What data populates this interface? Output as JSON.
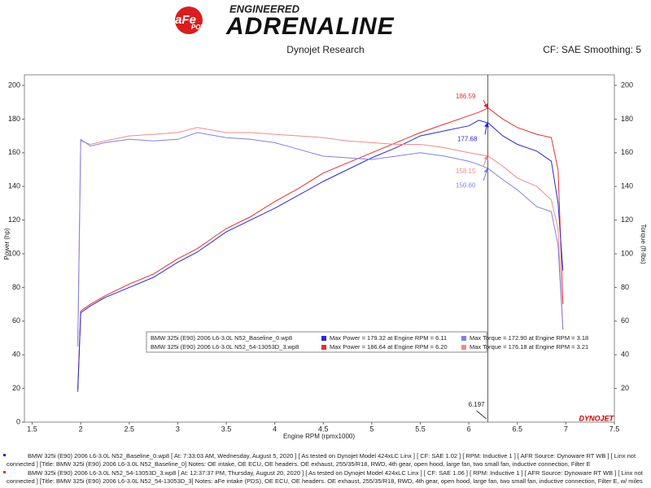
{
  "header": {
    "logo_brand": "aFe",
    "logo_sub": "POWER",
    "tagline": "ENGINEERED",
    "wordmark": "ADRENALINE"
  },
  "chart_data": {
    "type": "line",
    "title": "Dynojet Research",
    "subtitle": "CF: SAE Smoothing: 5",
    "x_label": "Engine RPM (rpmx1000)",
    "y_label": "Power (hp)",
    "y2_label": "Torque (ft-lbs)",
    "xlim": [
      1.42,
      7.5
    ],
    "xticks": [
      1.5,
      2.0,
      2.5,
      3.0,
      3.5,
      4.0,
      4.5,
      5.0,
      5.5,
      6.0,
      6.5,
      7.0,
      7.5
    ],
    "ylim": [
      0,
      206.3
    ],
    "yticks": [
      0,
      20,
      40,
      60,
      80,
      100,
      120,
      140,
      160,
      180,
      200
    ],
    "y2lim": [
      0,
      206.3
    ],
    "y2ticks": [
      20,
      40,
      60,
      80,
      100,
      120,
      140,
      160,
      180,
      200
    ],
    "grid": false,
    "x": [
      1.97,
      2.0,
      2.1,
      2.25,
      2.5,
      2.75,
      3.0,
      3.2,
      3.5,
      3.75,
      4.0,
      4.25,
      4.5,
      4.75,
      5.0,
      5.25,
      5.5,
      5.75,
      6.0,
      6.1,
      6.2,
      6.35,
      6.5,
      6.7,
      6.85,
      6.92,
      6.97
    ],
    "series": [
      {
        "color": "#e03030",
        "values": [
          20,
          66,
          70,
          75,
          82,
          88,
          97,
          103,
          115,
          122,
          131,
          139,
          148,
          154,
          160,
          166,
          172,
          177,
          182,
          184,
          186.6,
          180,
          175,
          171,
          169,
          150,
          70
        ]
      },
      {
        "color": "#2a2ad6",
        "values": [
          18,
          65,
          69,
          74,
          80,
          86,
          95,
          101,
          113,
          120,
          127,
          135,
          143,
          150,
          157,
          163,
          170,
          173,
          176,
          179.3,
          177.7,
          170,
          165,
          161,
          155,
          130,
          90
        ]
      },
      {
        "color": "#f08a8a",
        "axis": "y2",
        "values": [
          48,
          167,
          165,
          167,
          170,
          171,
          172,
          175,
          172,
          172,
          171,
          170,
          169,
          167,
          166,
          165,
          165,
          163,
          160,
          159,
          158,
          152,
          145,
          140,
          132,
          115,
          55
        ]
      },
      {
        "color": "#8080e8",
        "axis": "y2",
        "values": [
          45,
          168,
          164,
          166,
          168,
          167,
          168,
          172,
          169,
          168,
          166,
          162,
          158,
          157,
          156,
          158,
          160,
          158,
          155,
          153,
          150.6,
          144,
          138,
          128,
          125,
          105,
          55
        ]
      }
    ],
    "annotations": [
      {
        "text": "186.59",
        "x": 6.2,
        "y": 186.59,
        "color": "#e03030"
      },
      {
        "text": "177.68",
        "x": 6.2,
        "y": 177.68,
        "color": "#2a2ad6"
      },
      {
        "text": "158.15",
        "x": 6.2,
        "y": 158.15,
        "color": "#f08a8a"
      },
      {
        "text": "150.60",
        "x": 6.2,
        "y": 150.6,
        "color": "#8080e8"
      }
    ],
    "cursor": 6.197,
    "legend": [
      {
        "run": "BMW 325i (E90) 2006 L6-3.0L N52_Baseline_0.wp8",
        "power_color": "#2a2ad6",
        "power": "Max Power = 179.32 at Engine RPM = 6.11",
        "torque_color": "#8080e8",
        "torque": "Max Torque = 172.90 at Engine RPM = 3.18"
      },
      {
        "run": "BMW 325i (E90) 2006 L6-3.0L N52_54-13053D_3.wp8",
        "power_color": "#e03030",
        "power": "Max Power = 186.64 at Engine RPM = 6.20",
        "torque_color": "#f08a8a",
        "torque": "Max Torque = 176.18 at Engine RPM = 3.21"
      }
    ],
    "brand": "DYNOJET"
  },
  "footer": [
    "BMW 325i (E90) 2006 L6-3.0L N52_Baseline_0.wp8 [ At: 7:33:03 AM, Wednesday, August 5, 2020 ] [ As tested on Dynojet Model 424xLC Linx ] [ CF: SAE 1.02 ] [ RPM: Inductive 1 ] [ AFR Source: Dynoware RT WB ] [ Linx not connected ] [Title: BMW 325i (E90) 2006 L6-3.0L N52_Baseline_0]  Notes: OE intake, OE ECU, OE headers. OE exhaust, 255/35/R18, RWD, 4th gear, open hood, large fan, two small fan, inductive connection, Filter E",
    "BMW 325i (E90) 2006 L6-3.0L N52_54-13053D_3.wp8 [ At: 12:37:37 PM, Thursday, August 20, 2020 ] [ As tested on Dynojet Model 424xLC Linx ] [ CF: SAE 1.06 ] [ RPM: Inductive 1 ] [ AFR Source: Dynoware RT WB ] [ Linx not connected ] [Title: BMW 325i (E90) 2006 L6-3.0L N52_54-13053D_3]  Notes: aFe intake (PDS), OE ECU, OE headers. OE exhaust, 255/35/R18, RWD, 4th gear, open hood, large fan, two small fan, inductive connection, Filter E, w/ miles"
  ]
}
